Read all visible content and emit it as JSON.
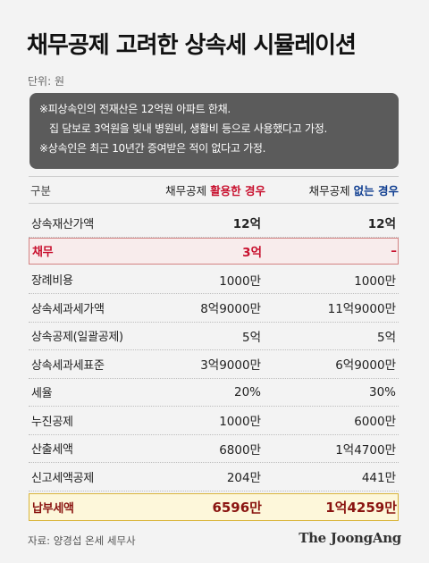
{
  "title": "채무공제 고려한 상속세 시뮬레이션",
  "unit": "단위: 원",
  "notes": [
    "※피상속인의 전재산은 12억원 아파트 한채.",
    "집 담보로 3억원을 빚내 병원비, 생활비 등으로 사용했다고 가정.",
    "※상속인은 최근 10년간 증여받은 적이 없다고 가정."
  ],
  "header": {
    "category": "구분",
    "col1_prefix": "채무공제 ",
    "col1_emph": "활용한 경우",
    "col2_prefix": "채무공제 ",
    "col2_emph": "없는 경우"
  },
  "rows": [
    {
      "label": "상속재산가액",
      "with": "12억",
      "without": "12억"
    },
    {
      "label": "채무",
      "with": "3억",
      "without": "–"
    },
    {
      "label": "장례비용",
      "with": "1000만",
      "without": "1000만"
    },
    {
      "label": "상속세과세가액",
      "with": "8억9000만",
      "without": "11억9000만"
    },
    {
      "label": "상속공제(일괄공제)",
      "with": "5억",
      "without": "5억"
    },
    {
      "label": "상속세과세표준",
      "with": "3억9000만",
      "without": "6억9000만"
    },
    {
      "label": "세율",
      "with": "20%",
      "without": "30%"
    },
    {
      "label": "누진공제",
      "with": "1000만",
      "without": "6000만"
    },
    {
      "label": "산출세액",
      "with": "6800만",
      "without": "1억4700만"
    },
    {
      "label": "신고세액공제",
      "with": "204만",
      "without": "441만"
    },
    {
      "label": "납부세액",
      "with": "6596만",
      "without": "1억4259만"
    }
  ],
  "source": "자료: 양경섭 온세 세무사",
  "brand": "The JoongAng",
  "colors": {
    "accent_red": "#c8102e",
    "accent_blue": "#0c3b8f",
    "note_bg": "#5b5b5b"
  }
}
